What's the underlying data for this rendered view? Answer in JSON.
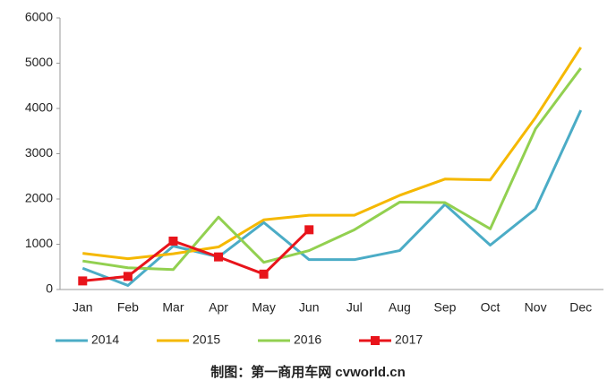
{
  "chart_data": {
    "type": "line",
    "categories": [
      "Jan",
      "Feb",
      "Mar",
      "Apr",
      "May",
      "Jun",
      "Jul",
      "Aug",
      "Sep",
      "Oct",
      "Nov",
      "Dec"
    ],
    "series": [
      {
        "name": "2014",
        "color": "#4bacc6",
        "values": [
          470,
          90,
          960,
          720,
          1480,
          660,
          660,
          860,
          1880,
          980,
          1780,
          3960
        ]
      },
      {
        "name": "2015",
        "color": "#f5b800",
        "values": [
          800,
          680,
          790,
          940,
          1540,
          1640,
          1640,
          2080,
          2440,
          2420,
          3800,
          5350
        ]
      },
      {
        "name": "2016",
        "color": "#92d050",
        "values": [
          630,
          480,
          440,
          1600,
          600,
          860,
          1320,
          1930,
          1920,
          1340,
          3550,
          4890
        ]
      },
      {
        "name": "2017",
        "color": "#e8141b",
        "marker": "square",
        "values": [
          190,
          290,
          1070,
          720,
          340,
          1320,
          null,
          null,
          null,
          null,
          null,
          null
        ]
      }
    ],
    "ylim": [
      0,
      6000
    ],
    "yticks": [
      0,
      1000,
      2000,
      3000,
      4000,
      5000,
      6000
    ],
    "grid": false,
    "legend": "bottom",
    "caption": "制图：第一商用车网 cvworld.cn"
  }
}
